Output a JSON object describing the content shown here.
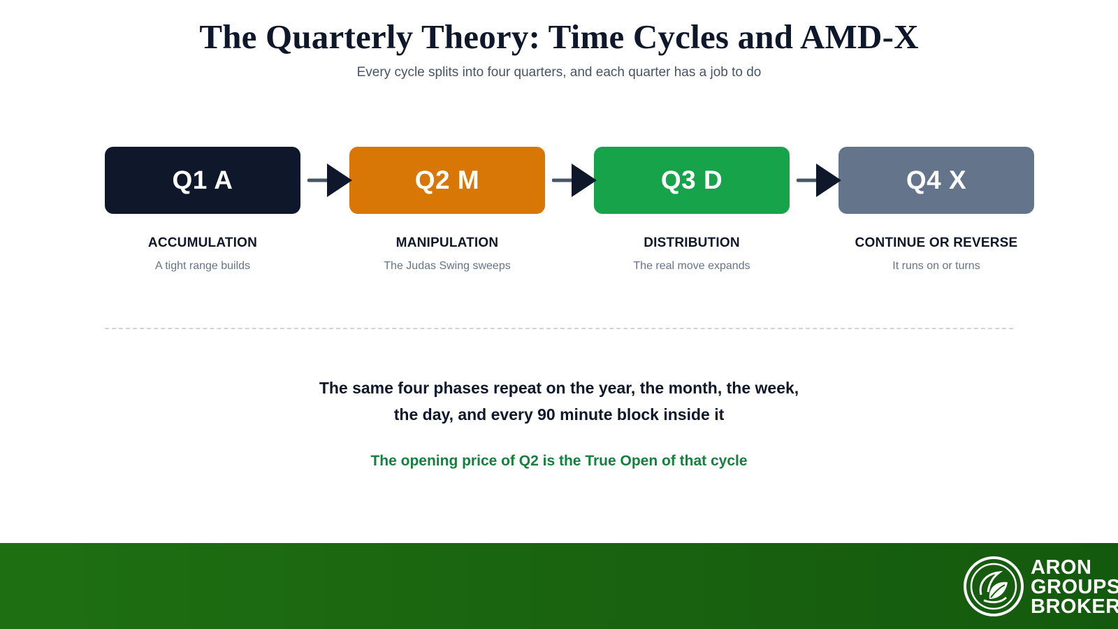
{
  "title": "The Quarterly Theory: Time Cycles and AMD-X",
  "subtitle": "Every cycle splits into four quarters, and each quarter has a job to do",
  "phases": [
    {
      "label": "Q1 A",
      "name": "ACCUMULATION",
      "description": "A tight range builds",
      "color": "#0f172a"
    },
    {
      "label": "Q2 M",
      "name": "MANIPULATION",
      "description": "The Judas Swing sweeps",
      "color": "#d97706"
    },
    {
      "label": "Q3 D",
      "name": "DISTRIBUTION",
      "description": "The real move expands",
      "color": "#16a34a"
    },
    {
      "label": "Q4 X",
      "name": "CONTINUE OR REVERSE",
      "description": "It runs on or turns",
      "color": "#64748b"
    }
  ],
  "statement": {
    "line1": "The same four phases repeat on the year, the month, the week,",
    "line2": "the day, and every 90 minute block inside it"
  },
  "note": "The opening price of Q2 is the True Open of that cycle",
  "brand": {
    "line1": "ARON",
    "line2": "GROUPS",
    "line3": "BROKER",
    "icon": "leaf-circle-icon"
  },
  "colors": {
    "arrow": "#0f172a",
    "arrow_shaft": "#475569",
    "footer": "#1a6410",
    "note": "#15803d"
  }
}
